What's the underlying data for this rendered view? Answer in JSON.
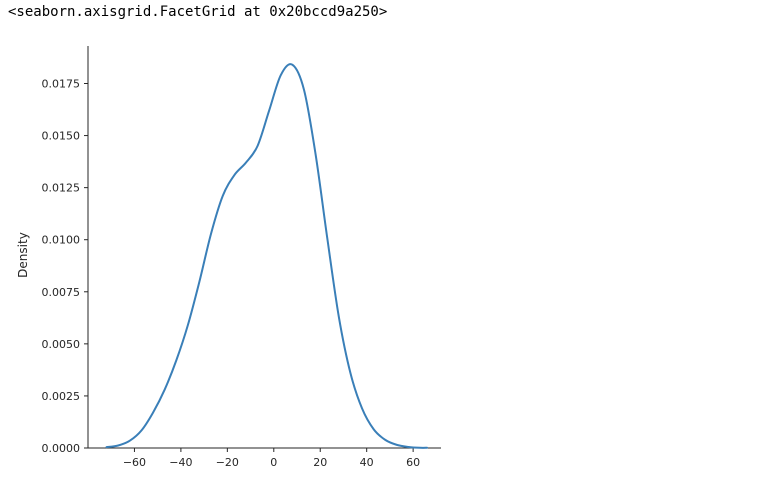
{
  "output": {
    "repr_text": "<seaborn.axisgrid.FacetGrid at 0x20bccd9a250>"
  },
  "chart_data": {
    "type": "line",
    "title": "",
    "xlabel": "",
    "ylabel": "Density",
    "xlim": [
      -80,
      72
    ],
    "ylim": [
      0,
      0.0193
    ],
    "x_ticks": [
      -60,
      -40,
      -20,
      0,
      20,
      40,
      60
    ],
    "y_ticks": [
      0.0,
      0.0025,
      0.005,
      0.0075,
      0.01,
      0.0125,
      0.015,
      0.0175
    ],
    "y_tick_labels": [
      "0.0000",
      "0.0025",
      "0.0050",
      "0.0075",
      "0.0100",
      "0.0125",
      "0.0150",
      "0.0175"
    ],
    "grid": false,
    "series": [
      {
        "name": "",
        "color": "#3a7fb8",
        "x": [
          -72,
          -67,
          -62,
          -57,
          -52,
          -47,
          -42,
          -37,
          -32,
          -27,
          -22,
          -17,
          -12,
          -7,
          -2,
          3,
          8,
          13,
          18,
          23,
          28,
          33,
          38,
          43,
          48,
          53,
          58,
          63,
          66
        ],
        "y": [
          4e-05,
          0.00012,
          0.00035,
          0.00084,
          0.0017,
          0.0028,
          0.0042,
          0.0059,
          0.008,
          0.0103,
          0.0121,
          0.0131,
          0.0137,
          0.0145,
          0.0162,
          0.0179,
          0.0184,
          0.0172,
          0.0141,
          0.0101,
          0.0063,
          0.0036,
          0.0019,
          0.0009,
          0.00039,
          0.00015,
          5e-05,
          1e-05,
          1e-05
        ]
      }
    ]
  }
}
